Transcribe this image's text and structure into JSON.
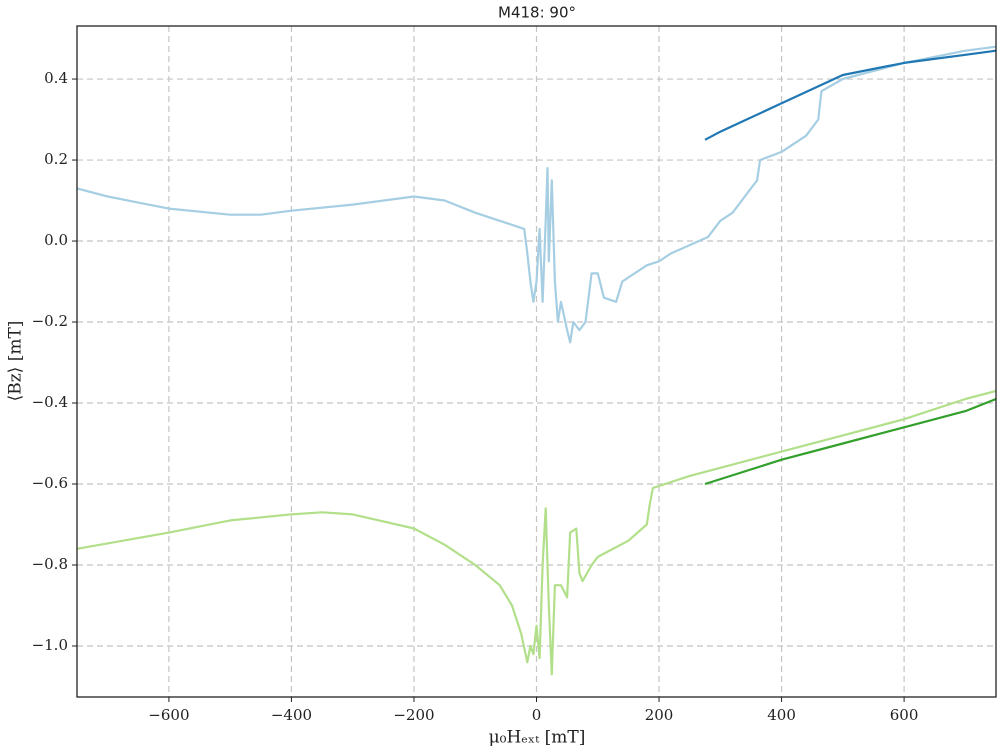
{
  "chart_data": {
    "type": "line",
    "title": "M418: 90°",
    "xlabel": "μ₀Hₑₓₜ [mT]",
    "ylabel": "⟨Bz⟩ [mT]",
    "xlim": [
      -750,
      750
    ],
    "ylim": [
      -1.126,
      0.531
    ],
    "xticks": [
      {
        "value": -600,
        "label": "−600"
      },
      {
        "value": -400,
        "label": "−400"
      },
      {
        "value": -200,
        "label": "−200"
      },
      0,
      200,
      400,
      600
    ],
    "yticks": [
      {
        "value": -1.0,
        "label": "−1.0"
      },
      {
        "value": -0.8,
        "label": "−0.8"
      },
      {
        "value": -0.6,
        "label": "−0.6"
      },
      {
        "value": -0.4,
        "label": "−0.4"
      },
      {
        "value": -0.2,
        "label": "−0.2"
      },
      {
        "value": 0,
        "label": "0.0"
      },
      0.2,
      0.4
    ],
    "grid": true,
    "series": [
      {
        "color": "#a6cee3",
        "x": [
          -750,
          -700,
          -600,
          -500,
          -450,
          -400,
          -300,
          -200,
          -150,
          -100,
          -60,
          -40,
          -20,
          -15,
          -10,
          -5,
          0,
          5,
          10,
          15,
          18,
          20,
          25,
          30,
          35,
          40,
          50,
          55,
          60,
          70,
          80,
          90,
          100,
          110,
          130,
          140,
          160,
          180,
          200,
          220,
          250,
          280,
          300,
          320,
          340,
          360,
          365,
          400,
          420,
          440,
          460,
          465,
          500,
          600,
          700,
          750
        ],
        "values": [
          0.13,
          0.11,
          0.08,
          0.065,
          0.065,
          0.075,
          0.09,
          0.11,
          0.1,
          0.07,
          0.05,
          0.04,
          0.03,
          -0.03,
          -0.1,
          -0.15,
          -0.1,
          0.03,
          -0.15,
          0.05,
          0.18,
          -0.05,
          0.15,
          -0.1,
          -0.2,
          -0.15,
          -0.22,
          -0.25,
          -0.2,
          -0.22,
          -0.2,
          -0.08,
          -0.08,
          -0.14,
          -0.15,
          -0.1,
          -0.08,
          -0.06,
          -0.05,
          -0.03,
          -0.01,
          0.01,
          0.05,
          0.07,
          0.11,
          0.15,
          0.2,
          0.22,
          0.24,
          0.26,
          0.3,
          0.37,
          0.4,
          0.44,
          0.47,
          0.48
        ]
      },
      {
        "color": "#1f78b4",
        "x": [
          275,
          300,
          400,
          500,
          600,
          700,
          750
        ],
        "values": [
          0.25,
          0.27,
          0.34,
          0.41,
          0.44,
          0.46,
          0.47
        ]
      },
      {
        "color": "#b2df8a",
        "x": [
          -750,
          -600,
          -500,
          -400,
          -350,
          -300,
          -200,
          -150,
          -100,
          -60,
          -40,
          -25,
          -15,
          -10,
          -5,
          0,
          5,
          10,
          15,
          20,
          25,
          30,
          40,
          50,
          55,
          65,
          70,
          75,
          90,
          100,
          150,
          180,
          185,
          190,
          250,
          300,
          400,
          500,
          600,
          700,
          750
        ],
        "values": [
          -0.76,
          -0.72,
          -0.69,
          -0.675,
          -0.67,
          -0.675,
          -0.71,
          -0.75,
          -0.8,
          -0.85,
          -0.9,
          -0.97,
          -1.04,
          -1.0,
          -1.02,
          -0.95,
          -1.03,
          -0.8,
          -0.66,
          -0.9,
          -1.07,
          -0.85,
          -0.85,
          -0.88,
          -0.72,
          -0.71,
          -0.82,
          -0.84,
          -0.8,
          -0.78,
          -0.74,
          -0.7,
          -0.65,
          -0.61,
          -0.58,
          -0.56,
          -0.52,
          -0.48,
          -0.44,
          -0.39,
          -0.37
        ]
      },
      {
        "color": "#33a02c",
        "x": [
          275,
          400,
          500,
          600,
          700,
          750
        ],
        "values": [
          -0.6,
          -0.54,
          -0.5,
          -0.46,
          -0.42,
          -0.39
        ]
      }
    ]
  }
}
